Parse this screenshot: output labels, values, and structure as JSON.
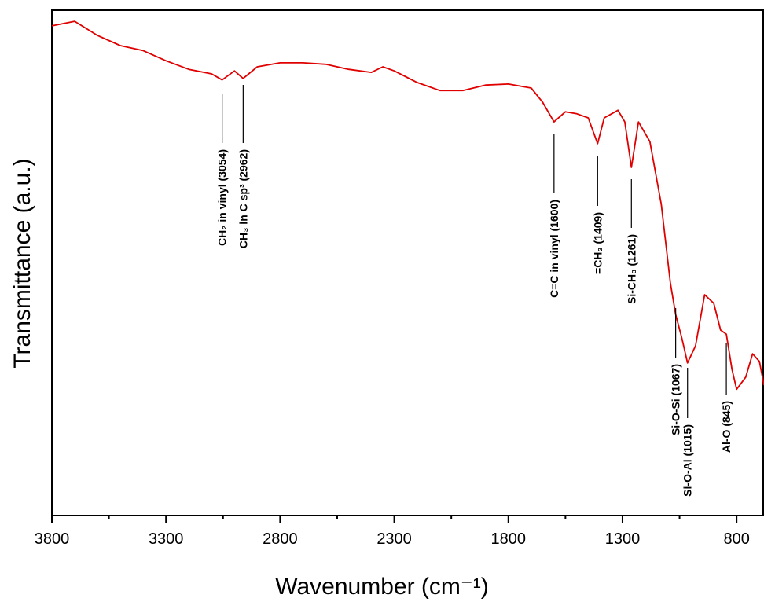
{
  "chart_data": {
    "type": "line",
    "xlabel": "Wavenumber (cm⁻¹)",
    "ylabel": "Transmittance (a.u.)",
    "xlim": [
      3800,
      680
    ],
    "ylim": [
      0,
      100
    ],
    "xticks": [
      3800,
      3300,
      2800,
      2300,
      1800,
      1300,
      800
    ],
    "xminorticks": [
      3550,
      3050,
      2550,
      2050,
      1550,
      1050
    ],
    "x": [
      3800,
      3700,
      3600,
      3500,
      3400,
      3300,
      3200,
      3100,
      3054,
      3000,
      2962,
      2900,
      2800,
      2700,
      2600,
      2500,
      2400,
      2350,
      2300,
      2200,
      2100,
      2000,
      1900,
      1800,
      1700,
      1650,
      1600,
      1550,
      1500,
      1450,
      1409,
      1380,
      1320,
      1290,
      1261,
      1230,
      1180,
      1130,
      1090,
      1067,
      1040,
      1015,
      980,
      940,
      900,
      870,
      845,
      820,
      800,
      760,
      730,
      700,
      680
    ],
    "series": [
      {
        "name": "Transmittance",
        "color": "#e00000",
        "values": [
          96.9,
          97.8,
          95,
          93,
          92,
          90,
          88.3,
          87.4,
          86.2,
          88,
          86.5,
          88.8,
          89.6,
          89.6,
          89.3,
          88.3,
          87.7,
          88.8,
          88,
          85.7,
          84.1,
          84.1,
          85.2,
          85.4,
          84.6,
          81.8,
          77.9,
          79.9,
          79.5,
          78.7,
          73.6,
          78.7,
          80.2,
          77.9,
          68.9,
          77.9,
          74,
          61.6,
          46,
          39.8,
          35.1,
          30.2,
          33.6,
          43.7,
          42,
          36.7,
          35.9,
          28.9,
          25,
          27.4,
          32,
          30.5,
          25.8
        ]
      }
    ],
    "annotations": [
      {
        "text": "CH₂ in vinyl (3054)",
        "x": 3054
      },
      {
        "text": "CH₃ in C sp³ (2962)",
        "x": 2962
      },
      {
        "text": "C=C in vinyl (1600)",
        "x": 1600
      },
      {
        "text": "=CH₂ (1409)",
        "x": 1409
      },
      {
        "text": "Si-CH₃ (1261)",
        "x": 1261
      },
      {
        "text": "Si-O-Si (1067)",
        "x": 1067
      },
      {
        "text": "Si-O-Al (1015)",
        "x": 1015
      },
      {
        "text": "Al-O (845)",
        "x": 845
      }
    ]
  }
}
